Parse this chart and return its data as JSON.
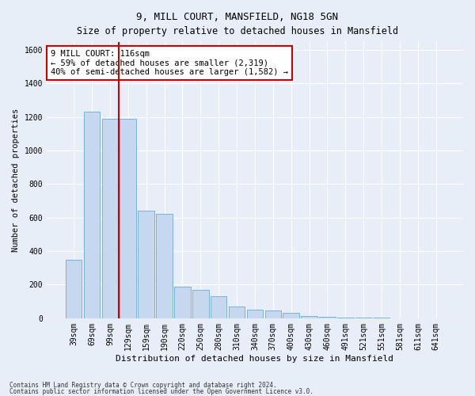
{
  "title": "9, MILL COURT, MANSFIELD, NG18 5GN",
  "subtitle": "Size of property relative to detached houses in Mansfield",
  "xlabel": "Distribution of detached houses by size in Mansfield",
  "ylabel": "Number of detached properties",
  "categories": [
    "39sqm",
    "69sqm",
    "99sqm",
    "129sqm",
    "159sqm",
    "190sqm",
    "220sqm",
    "250sqm",
    "280sqm",
    "310sqm",
    "340sqm",
    "370sqm",
    "400sqm",
    "430sqm",
    "460sqm",
    "491sqm",
    "521sqm",
    "551sqm",
    "581sqm",
    "611sqm",
    "641sqm"
  ],
  "values": [
    350,
    1230,
    1190,
    1190,
    640,
    625,
    190,
    170,
    130,
    70,
    50,
    45,
    30,
    15,
    8,
    5,
    3,
    2,
    1,
    1,
    1
  ],
  "bar_color": "#c5d8f0",
  "bar_edge_color": "#6aaad4",
  "vline_color": "#cc0000",
  "vline_x_index": 2.5,
  "annotation_text": "9 MILL COURT: 116sqm\n← 59% of detached houses are smaller (2,319)\n40% of semi-detached houses are larger (1,582) →",
  "annotation_box_color": "#ffffff",
  "annotation_border_color": "#cc0000",
  "ylim": [
    0,
    1650
  ],
  "yticks": [
    0,
    200,
    400,
    600,
    800,
    1000,
    1200,
    1400,
    1600
  ],
  "footer1": "Contains HM Land Registry data © Crown copyright and database right 2024.",
  "footer2": "Contains public sector information licensed under the Open Government Licence v3.0.",
  "bg_color": "#e8eef8",
  "plot_bg_color": "#e8eef8",
  "grid_color": "#ffffff",
  "title_fontsize": 9,
  "subtitle_fontsize": 8.5,
  "tick_fontsize": 7,
  "label_fontsize": 7.5,
  "xlabel_fontsize": 8,
  "ylabel_fontsize": 7.5
}
